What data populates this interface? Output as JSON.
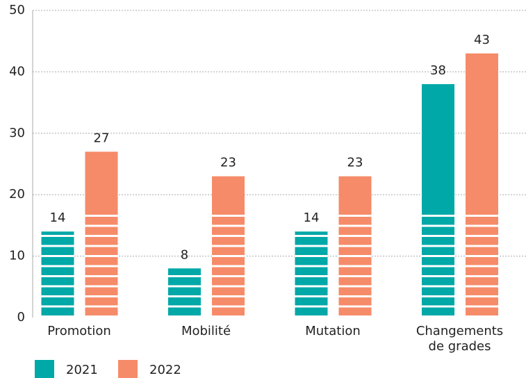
{
  "chart_data": {
    "type": "bar",
    "categories": [
      "Promotion",
      "Mobilité",
      "Mutation",
      "Changements de grades"
    ],
    "series": [
      {
        "name": "2021",
        "color": "#00a8a8",
        "values": [
          14,
          8,
          14,
          38
        ]
      },
      {
        "name": "2022",
        "color": "#f68b69",
        "values": [
          27,
          23,
          23,
          43
        ]
      }
    ],
    "ylim": [
      0,
      50
    ],
    "yticks": [
      0,
      10,
      20,
      30,
      40,
      50
    ],
    "grid": true
  }
}
